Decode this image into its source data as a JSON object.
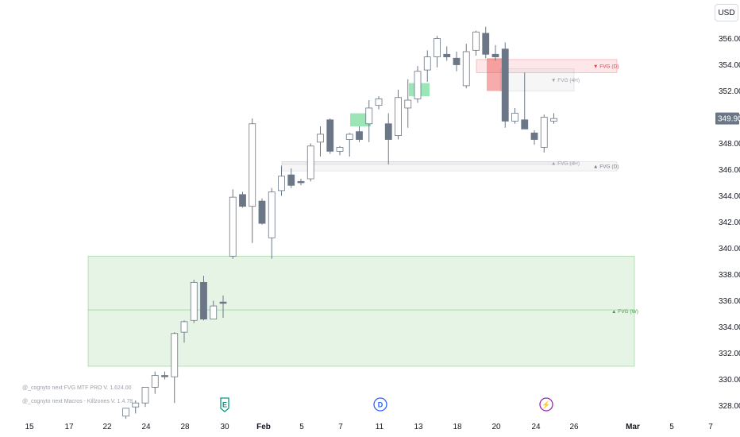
{
  "currency": "USD",
  "indicators": [
    "@_cognyto next FVG MTF PRO V. 1.624.00",
    "@_cognyto next Macros - Killzones V. 1.4.78"
  ],
  "chart_data": {
    "type": "candlestick",
    "title": "",
    "xlabel": "",
    "ylabel": "",
    "ylim": [
      327.0,
      357.2
    ],
    "y_ticks": [
      356,
      354,
      352,
      350,
      348,
      346,
      344,
      342,
      340,
      338,
      336,
      334,
      332,
      330,
      328
    ],
    "x_ticks": [
      {
        "label": "15",
        "bold": false
      },
      {
        "label": "17",
        "bold": false
      },
      {
        "label": "22",
        "bold": false
      },
      {
        "label": "24",
        "bold": false
      },
      {
        "label": "28",
        "bold": false
      },
      {
        "label": "30",
        "bold": false
      },
      {
        "label": "Feb",
        "bold": true
      },
      {
        "label": "5",
        "bold": false
      },
      {
        "label": "7",
        "bold": false
      },
      {
        "label": "11",
        "bold": false
      },
      {
        "label": "13",
        "bold": false
      },
      {
        "label": "18",
        "bold": false
      },
      {
        "label": "20",
        "bold": false
      },
      {
        "label": "24",
        "bold": false
      },
      {
        "label": "26",
        "bold": false
      },
      {
        "label": "Mar",
        "bold": true
      },
      {
        "label": "5",
        "bold": false
      },
      {
        "label": "7",
        "bold": false
      }
    ],
    "last_price": "349.90",
    "up_color": "#ffffff",
    "down_color": "#6b7786",
    "candles": [
      {
        "o": 327.2,
        "h": 327.8,
        "l": 327.0,
        "c": 327.8
      },
      {
        "o": 327.9,
        "h": 328.4,
        "l": 327.4,
        "c": 328.2
      },
      {
        "o": 328.2,
        "h": 329.4,
        "l": 327.9,
        "c": 329.4
      },
      {
        "o": 329.4,
        "h": 330.6,
        "l": 328.9,
        "c": 330.3
      },
      {
        "o": 330.3,
        "h": 330.6,
        "l": 330.0,
        "c": 330.2
      },
      {
        "o": 330.2,
        "h": 333.6,
        "l": 328.2,
        "c": 333.5
      },
      {
        "o": 333.6,
        "h": 334.5,
        "l": 332.8,
        "c": 334.4
      },
      {
        "o": 334.5,
        "h": 337.6,
        "l": 334.3,
        "c": 337.4
      },
      {
        "o": 337.4,
        "h": 337.9,
        "l": 334.5,
        "c": 334.6
      },
      {
        "o": 334.6,
        "h": 336.0,
        "l": 334.6,
        "c": 335.6
      },
      {
        "o": 335.9,
        "h": 336.4,
        "l": 334.7,
        "c": 335.8
      },
      {
        "o": 339.4,
        "h": 344.5,
        "l": 339.2,
        "c": 343.9
      },
      {
        "o": 344.1,
        "h": 344.3,
        "l": 343.1,
        "c": 343.2
      },
      {
        "o": 343.2,
        "h": 349.9,
        "l": 340.4,
        "c": 349.5
      },
      {
        "o": 343.6,
        "h": 343.8,
        "l": 341.8,
        "c": 341.9
      },
      {
        "o": 340.8,
        "h": 344.6,
        "l": 339.2,
        "c": 344.3
      },
      {
        "o": 344.4,
        "h": 346.3,
        "l": 344.0,
        "c": 345.5
      },
      {
        "o": 345.6,
        "h": 346.1,
        "l": 344.6,
        "c": 344.8
      },
      {
        "o": 345.1,
        "h": 345.3,
        "l": 344.8,
        "c": 345.0
      },
      {
        "o": 345.3,
        "h": 348.0,
        "l": 345.1,
        "c": 347.8
      },
      {
        "o": 348.1,
        "h": 349.3,
        "l": 347.0,
        "c": 348.7
      },
      {
        "o": 349.8,
        "h": 349.9,
        "l": 347.2,
        "c": 347.4
      },
      {
        "o": 347.4,
        "h": 347.8,
        "l": 347.1,
        "c": 347.7
      },
      {
        "o": 348.3,
        "h": 348.8,
        "l": 347.0,
        "c": 348.7
      },
      {
        "o": 348.9,
        "h": 349.3,
        "l": 348.1,
        "c": 348.3
      },
      {
        "o": 349.5,
        "h": 351.3,
        "l": 348.1,
        "c": 350.7
      },
      {
        "o": 350.9,
        "h": 351.6,
        "l": 350.6,
        "c": 351.4
      },
      {
        "o": 349.5,
        "h": 350.3,
        "l": 346.4,
        "c": 348.3
      },
      {
        "o": 348.6,
        "h": 352.1,
        "l": 348.3,
        "c": 351.5
      },
      {
        "o": 350.7,
        "h": 352.9,
        "l": 349.2,
        "c": 351.3
      },
      {
        "o": 351.4,
        "h": 353.9,
        "l": 351.1,
        "c": 353.5
      },
      {
        "o": 353.6,
        "h": 355.1,
        "l": 352.7,
        "c": 354.6
      },
      {
        "o": 354.6,
        "h": 356.2,
        "l": 353.8,
        "c": 356.0
      },
      {
        "o": 354.8,
        "h": 355.4,
        "l": 354.3,
        "c": 354.6
      },
      {
        "o": 354.5,
        "h": 355.0,
        "l": 353.5,
        "c": 354.0
      },
      {
        "o": 352.4,
        "h": 355.6,
        "l": 352.2,
        "c": 355.0
      },
      {
        "o": 355.1,
        "h": 356.6,
        "l": 354.7,
        "c": 356.5
      },
      {
        "o": 356.4,
        "h": 356.9,
        "l": 354.5,
        "c": 354.8
      },
      {
        "o": 354.8,
        "h": 355.5,
        "l": 354.3,
        "c": 354.6
      },
      {
        "o": 355.2,
        "h": 355.7,
        "l": 349.2,
        "c": 349.7
      },
      {
        "o": 349.7,
        "h": 350.7,
        "l": 349.5,
        "c": 350.3
      },
      {
        "o": 349.8,
        "h": 353.4,
        "l": 349.2,
        "c": 349.1
      },
      {
        "o": 348.8,
        "h": 349.0,
        "l": 347.9,
        "c": 348.3
      },
      {
        "o": 347.7,
        "h": 350.2,
        "l": 347.3,
        "c": 350.0
      },
      {
        "o": 349.7,
        "h": 350.3,
        "l": 349.5,
        "c": 349.9
      }
    ],
    "fvg_zones": [
      {
        "label": "FVG (W)",
        "direction": "up",
        "top": 339.4,
        "bottom": 331.0,
        "mid": 335.3,
        "color": "#4caf50",
        "label_color": "#3f9b48"
      },
      {
        "label": "FVG (D)",
        "direction": "down",
        "top": 354.4,
        "bottom": 353.4,
        "color": "#f23645",
        "label_color": "#e0404e"
      },
      {
        "label": "FVG (4H)",
        "direction": "down",
        "top": 353.7,
        "bottom": 352.0,
        "color": "#b2b5be",
        "label_color": "#9aa0ab"
      },
      {
        "label": "FVG (4H)",
        "direction": "up",
        "top": 346.6,
        "bottom": 346.4,
        "color": "#b2b5be",
        "label_color": "#9aa0ab"
      },
      {
        "label": "FVG (D)",
        "direction": "up",
        "top": 346.6,
        "bottom": 345.9,
        "color": "#b2b5be",
        "label_color": "#787b86"
      }
    ],
    "highlight_boxes": [
      {
        "color": "#22c55e",
        "top": 350.3,
        "bottom": 349.3
      },
      {
        "color": "#22c55e",
        "top": 352.6,
        "bottom": 351.6
      },
      {
        "color": "#ef4444",
        "top": 354.5,
        "bottom": 352.0
      }
    ],
    "event_markers": [
      {
        "letter": "E",
        "color": "#089981"
      },
      {
        "letter": "D",
        "color": "#2962ff"
      },
      {
        "letter": "⚡",
        "color": "#9c27b0"
      }
    ]
  }
}
